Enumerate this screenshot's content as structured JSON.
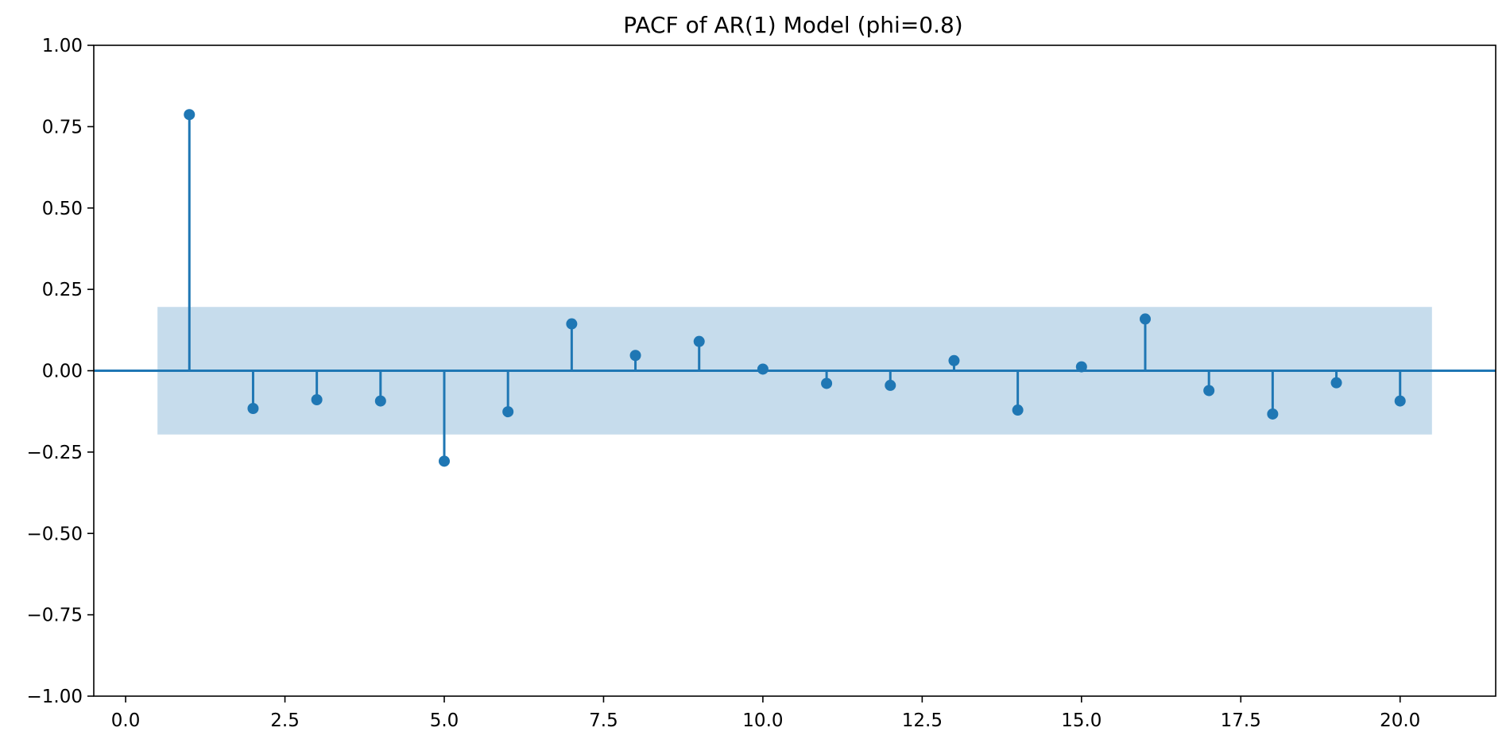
{
  "chart_data": {
    "type": "stem",
    "title": "PACF of AR(1) Model (phi=0.8)",
    "xlabel": "",
    "ylabel": "",
    "xlim": [
      -0.5,
      21.5
    ],
    "ylim": [
      -1.0,
      1.0
    ],
    "x_ticks": [
      0.0,
      2.5,
      5.0,
      7.5,
      10.0,
      12.5,
      15.0,
      17.5,
      20.0
    ],
    "x_tick_labels": [
      "0.0",
      "2.5",
      "5.0",
      "7.5",
      "10.0",
      "12.5",
      "15.0",
      "17.5",
      "20.0"
    ],
    "y_ticks": [
      1.0,
      0.75,
      0.5,
      0.25,
      0.0,
      -0.25,
      -0.5,
      -0.75,
      -1.0
    ],
    "y_tick_labels": [
      "1.00",
      "0.75",
      "0.50",
      "0.25",
      "0.00",
      "−0.25",
      "−0.50",
      "−0.75",
      "−1.00"
    ],
    "grid": false,
    "confidence_band": {
      "x_range": [
        0.5,
        20.5
      ],
      "lower": -0.196,
      "upper": 0.196,
      "color": "#c6dcec"
    },
    "baseline": 0.0,
    "series": [
      {
        "color": "#1f77b4",
        "lags": [
          1,
          2,
          3,
          4,
          5,
          6,
          7,
          8,
          9,
          10,
          11,
          12,
          13,
          14,
          15,
          16,
          17,
          18,
          19,
          20
        ],
        "values": [
          0.787,
          -0.116,
          -0.089,
          -0.093,
          -0.278,
          -0.126,
          0.144,
          0.047,
          0.09,
          0.005,
          -0.039,
          -0.045,
          0.031,
          -0.121,
          0.012,
          0.159,
          -0.061,
          -0.133,
          -0.037,
          -0.093
        ]
      }
    ],
    "axis_color": "#000000"
  }
}
